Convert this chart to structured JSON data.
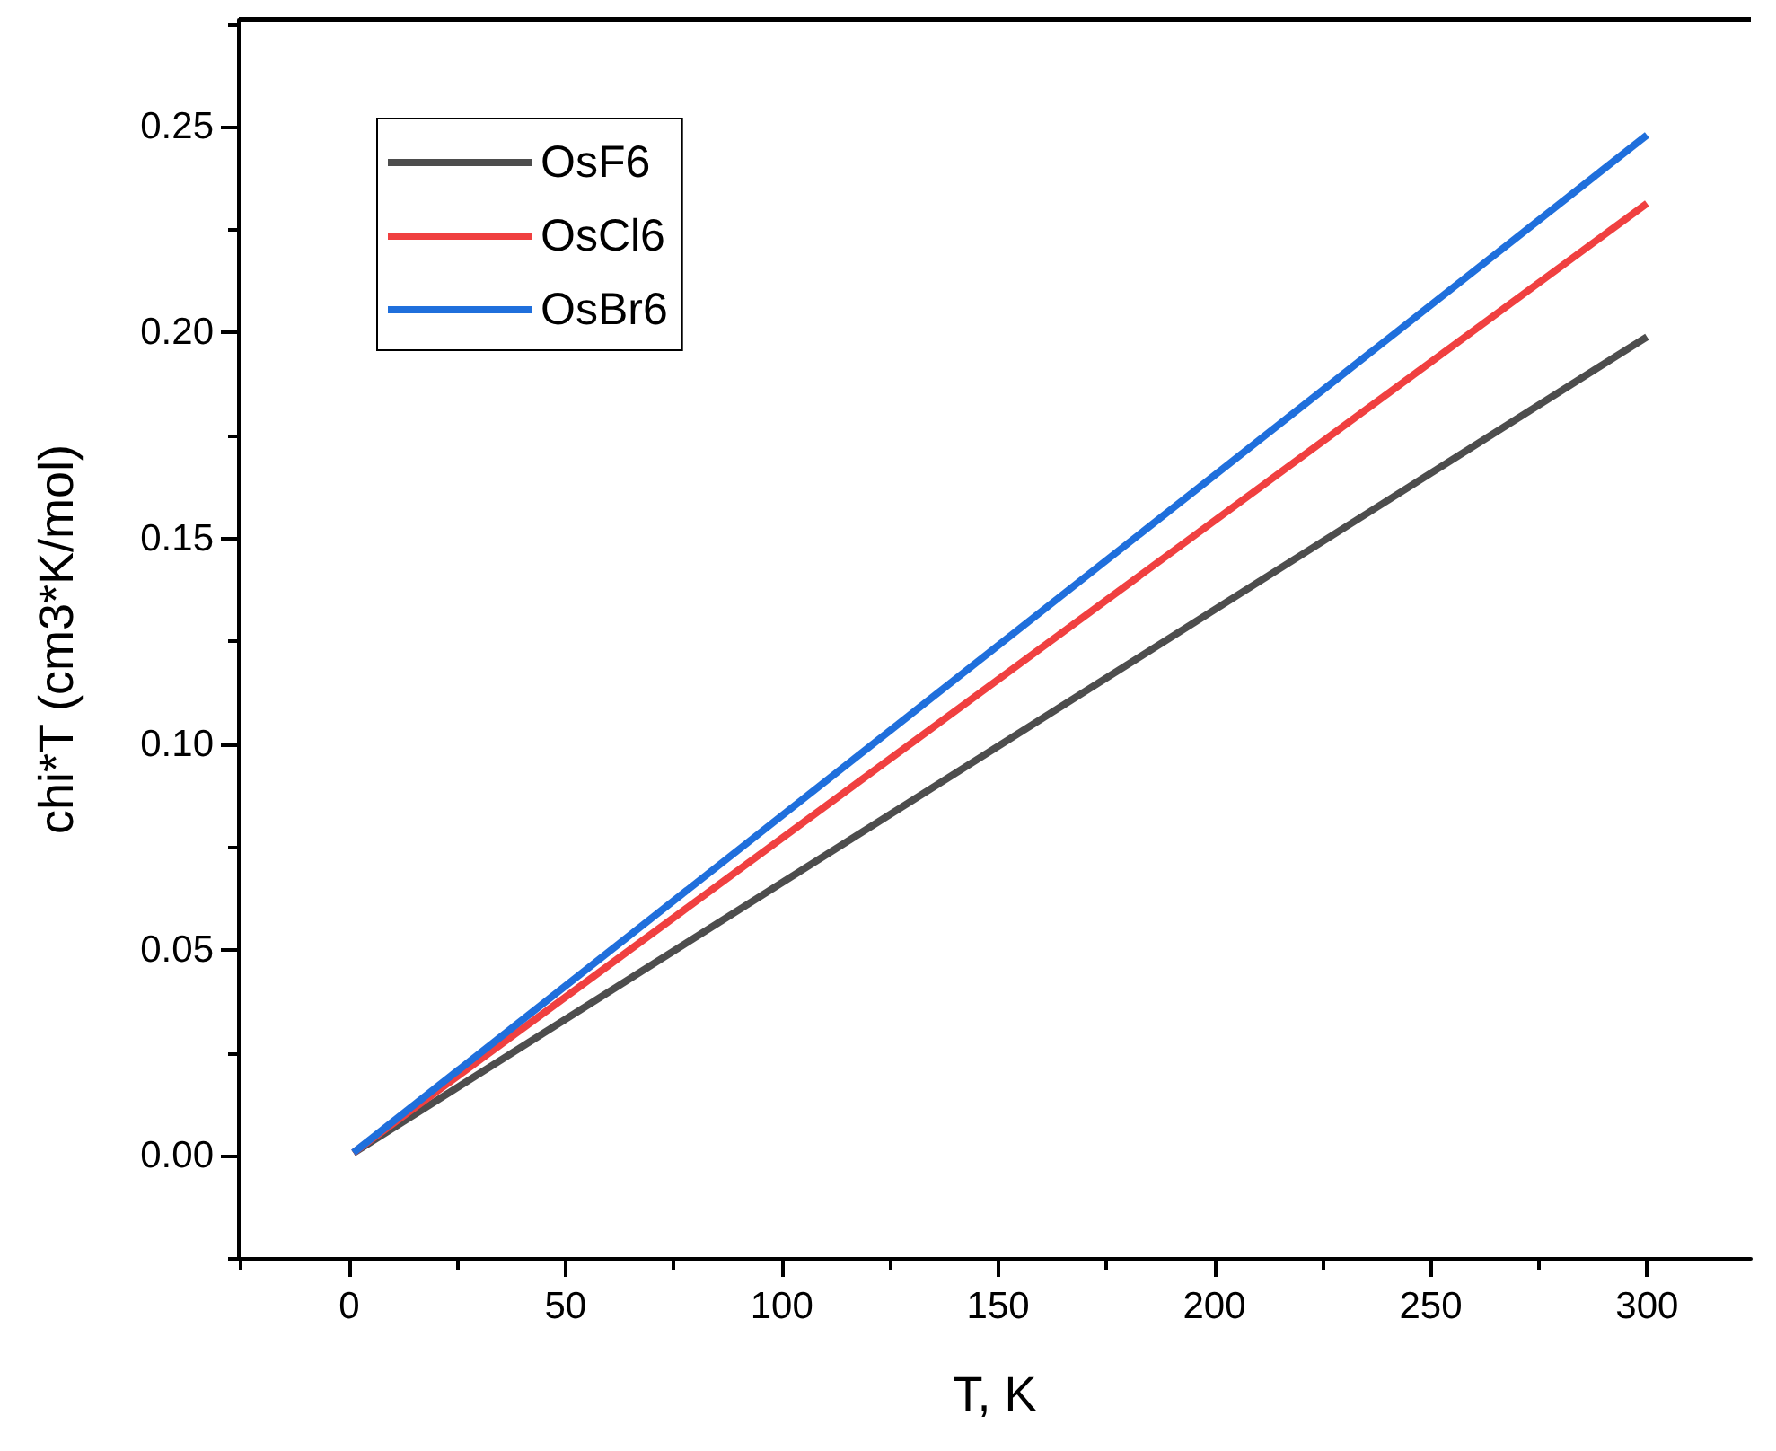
{
  "chart_data": {
    "type": "line",
    "xlabel": "T, K",
    "ylabel": "chi*T (cm3*K/mol)",
    "x": [
      1,
      300
    ],
    "series": [
      {
        "name": "OsF6",
        "color": "#4d4d4d",
        "values": [
          0.0007,
          0.199
        ]
      },
      {
        "name": "OsCl6",
        "color": "#f04040",
        "values": [
          0.0008,
          0.2314
        ]
      },
      {
        "name": "OsBr6",
        "color": "#1f6fdc",
        "values": [
          0.0008,
          0.248
        ]
      }
    ],
    "xlim": [
      -25.5,
      324
    ],
    "ylim": [
      -0.025,
      0.276
    ],
    "xticks": [
      {
        "value": -25,
        "label": null
      },
      0,
      {
        "value": 25,
        "label": null
      },
      50,
      {
        "value": 75,
        "label": null
      },
      100,
      {
        "value": 125,
        "label": null
      },
      150,
      {
        "value": 175,
        "label": null
      },
      200,
      {
        "value": 225,
        "label": null
      },
      250,
      {
        "value": 275,
        "label": null
      },
      300
    ],
    "yticks": [
      {
        "value": -0.025,
        "label": null
      },
      {
        "value": 0,
        "label": "0.00"
      },
      {
        "value": 0.025,
        "label": null
      },
      0.05,
      {
        "value": 0.075,
        "label": null
      },
      {
        "value": 0.1,
        "label": "0.10"
      },
      {
        "value": 0.125,
        "label": null
      },
      0.15,
      {
        "value": 0.175,
        "label": null
      },
      {
        "value": 0.2,
        "label": "0.20"
      },
      {
        "value": 0.225,
        "label": null
      },
      0.25,
      {
        "value": 0.275,
        "label": null
      }
    ],
    "grid": false,
    "legend": "top left",
    "marker": "none",
    "line_style": "solid"
  }
}
